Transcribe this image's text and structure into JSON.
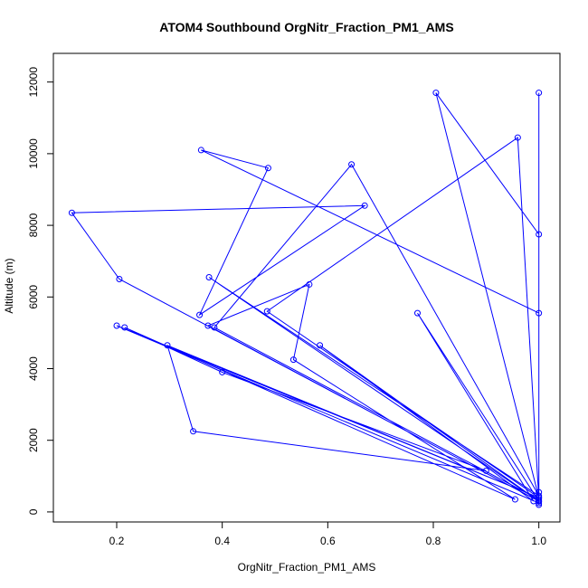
{
  "chart_data": {
    "type": "line",
    "title": "ATOM4 Southbound OrgNitr_Fraction_PM1_AMS",
    "xlabel": "OrgNitr_Fraction_PM1_AMS",
    "ylabel": "Altitude (m)",
    "xlim": [
      0.08,
      1.04
    ],
    "ylim": [
      -280,
      12800
    ],
    "xticks": [
      0.2,
      0.4,
      0.6,
      0.8,
      1.0
    ],
    "xtick_labels": [
      "0.2",
      "0.4",
      "0.6",
      "0.8",
      "1.0"
    ],
    "yticks": [
      0,
      2000,
      4000,
      6000,
      8000,
      10000,
      12000
    ],
    "ytick_labels": [
      "0",
      "2000",
      "4000",
      "6000",
      "8000",
      "10000",
      "12000"
    ],
    "grid": false,
    "series": [
      {
        "color": "#0000ff",
        "points": [
          [
            1.0,
            11700
          ],
          [
            1.0,
            250
          ],
          [
            0.2,
            5200
          ],
          [
            1.0,
            400
          ],
          [
            0.805,
            11700
          ],
          [
            1.0,
            7750
          ],
          [
            1.0,
            5550
          ],
          [
            0.36,
            10100
          ],
          [
            0.487,
            9600
          ],
          [
            0.357,
            5500
          ],
          [
            0.67,
            8550
          ],
          [
            0.115,
            8350
          ],
          [
            0.205,
            6500
          ],
          [
            1.0,
            300
          ],
          [
            0.375,
            6550
          ],
          [
            1.0,
            450
          ],
          [
            0.645,
            9700
          ],
          [
            0.385,
            5150
          ],
          [
            1.0,
            350
          ],
          [
            0.96,
            10450
          ],
          [
            0.485,
            5600
          ],
          [
            1.0,
            400
          ],
          [
            0.296,
            4650
          ],
          [
            0.345,
            2250
          ],
          [
            0.9,
            1150
          ],
          [
            0.4,
            3900
          ],
          [
            0.215,
            5150
          ],
          [
            0.955,
            350
          ],
          [
            0.535,
            4250
          ],
          [
            0.565,
            6350
          ],
          [
            0.373,
            5200
          ],
          [
            1.0,
            300
          ],
          [
            0.585,
            4650
          ],
          [
            0.99,
            300
          ],
          [
            0.77,
            5550
          ],
          [
            1.0,
            300
          ],
          [
            1.0,
            550
          ],
          [
            1.0,
            200
          ]
        ]
      }
    ]
  }
}
